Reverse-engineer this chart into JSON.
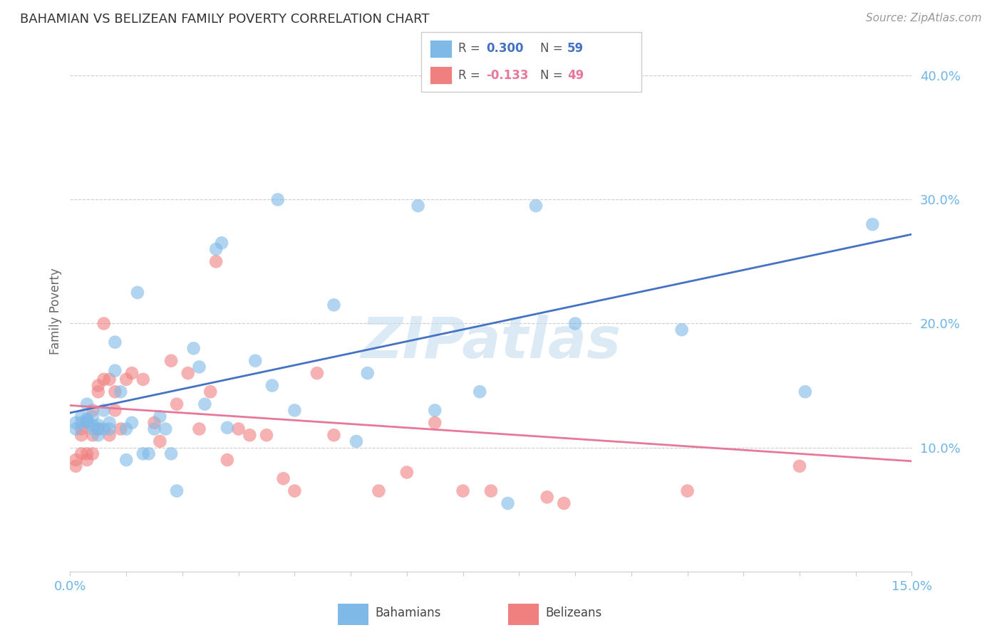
{
  "title": "BAHAMIAN VS BELIZEAN FAMILY POVERTY CORRELATION CHART",
  "source": "Source: ZipAtlas.com",
  "ylabel": "Family Poverty",
  "watermark": "ZIPatlas",
  "xlim": [
    0.0,
    0.15
  ],
  "ylim": [
    0.0,
    0.42
  ],
  "yticks": [
    0.1,
    0.2,
    0.3,
    0.4
  ],
  "ytick_labels": [
    "10.0%",
    "20.0%",
    "30.0%",
    "40.0%"
  ],
  "blue_color": "#7EB9E8",
  "pink_color": "#F08080",
  "blue_line_color": "#4472C4",
  "pink_line_color": "#E87899",
  "tick_color": "#6EB5E8",
  "grid_color": "#CCCCCC",
  "blue_line_x0": 0.0,
  "blue_line_y0": 0.128,
  "blue_line_x1": 0.15,
  "blue_line_y1": 0.272,
  "pink_line_x0": 0.0,
  "pink_line_y0": 0.134,
  "pink_line_x1": 0.15,
  "pink_line_y1": 0.089,
  "blue_x": [
    0.001,
    0.001,
    0.002,
    0.002,
    0.003,
    0.003,
    0.003,
    0.003,
    0.004,
    0.004,
    0.004,
    0.005,
    0.005,
    0.005,
    0.006,
    0.006,
    0.007,
    0.007,
    0.008,
    0.008,
    0.009,
    0.01,
    0.01,
    0.011,
    0.012,
    0.013,
    0.014,
    0.015,
    0.016,
    0.017,
    0.018,
    0.019,
    0.022,
    0.023,
    0.024,
    0.026,
    0.027,
    0.028,
    0.033,
    0.036,
    0.037,
    0.04,
    0.047,
    0.051,
    0.053,
    0.062,
    0.065,
    0.073,
    0.078,
    0.083,
    0.09,
    0.109,
    0.131,
    0.143
  ],
  "blue_y": [
    0.115,
    0.12,
    0.12,
    0.125,
    0.121,
    0.122,
    0.123,
    0.135,
    0.115,
    0.118,
    0.125,
    0.11,
    0.115,
    0.118,
    0.115,
    0.13,
    0.115,
    0.12,
    0.162,
    0.185,
    0.145,
    0.09,
    0.115,
    0.12,
    0.225,
    0.095,
    0.095,
    0.115,
    0.125,
    0.115,
    0.095,
    0.065,
    0.18,
    0.165,
    0.135,
    0.26,
    0.265,
    0.116,
    0.17,
    0.15,
    0.3,
    0.13,
    0.215,
    0.105,
    0.16,
    0.295,
    0.13,
    0.145,
    0.055,
    0.295,
    0.2,
    0.195,
    0.145,
    0.28
  ],
  "pink_x": [
    0.001,
    0.001,
    0.002,
    0.002,
    0.002,
    0.003,
    0.003,
    0.003,
    0.004,
    0.004,
    0.004,
    0.005,
    0.005,
    0.005,
    0.006,
    0.006,
    0.007,
    0.007,
    0.008,
    0.008,
    0.009,
    0.01,
    0.011,
    0.013,
    0.015,
    0.016,
    0.018,
    0.019,
    0.021,
    0.023,
    0.025,
    0.026,
    0.028,
    0.03,
    0.032,
    0.035,
    0.038,
    0.04,
    0.044,
    0.047,
    0.055,
    0.06,
    0.065,
    0.07,
    0.075,
    0.085,
    0.088,
    0.11,
    0.13
  ],
  "pink_y": [
    0.085,
    0.09,
    0.095,
    0.11,
    0.115,
    0.09,
    0.095,
    0.12,
    0.095,
    0.11,
    0.13,
    0.115,
    0.145,
    0.15,
    0.155,
    0.2,
    0.11,
    0.155,
    0.13,
    0.145,
    0.115,
    0.155,
    0.16,
    0.155,
    0.12,
    0.105,
    0.17,
    0.135,
    0.16,
    0.115,
    0.145,
    0.25,
    0.09,
    0.115,
    0.11,
    0.11,
    0.075,
    0.065,
    0.16,
    0.11,
    0.065,
    0.08,
    0.12,
    0.065,
    0.065,
    0.06,
    0.055,
    0.065,
    0.085
  ]
}
